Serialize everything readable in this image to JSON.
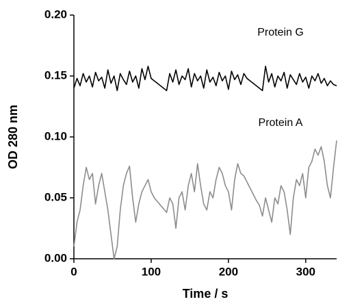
{
  "chart_data": {
    "type": "line",
    "x_label": "Time / s",
    "y_label": "OD 280 nm",
    "annotations": [
      "Protein G",
      "Protein A"
    ],
    "x": [
      0,
      4,
      8,
      12,
      16,
      20,
      24,
      28,
      32,
      36,
      40,
      44,
      48,
      52,
      56,
      60,
      64,
      68,
      72,
      76,
      80,
      84,
      88,
      92,
      96,
      100,
      104,
      108,
      112,
      116,
      120,
      124,
      128,
      132,
      136,
      140,
      144,
      148,
      152,
      156,
      160,
      164,
      168,
      172,
      176,
      180,
      184,
      188,
      192,
      196,
      200,
      204,
      208,
      212,
      216,
      220,
      224,
      228,
      232,
      236,
      240,
      244,
      248,
      252,
      256,
      260,
      264,
      268,
      272,
      276,
      280,
      284,
      288,
      292,
      296,
      300,
      304,
      308,
      312,
      316,
      320,
      324,
      328,
      332,
      336,
      340
    ],
    "series": [
      {
        "name": "Protein G",
        "color": "#000000",
        "values": [
          0.14,
          0.148,
          0.142,
          0.152,
          0.145,
          0.15,
          0.141,
          0.153,
          0.146,
          0.149,
          0.14,
          0.155,
          0.144,
          0.15,
          0.138,
          0.152,
          0.147,
          0.143,
          0.154,
          0.145,
          0.15,
          0.14,
          0.156,
          0.147,
          0.158,
          0.148,
          0.146,
          0.144,
          0.142,
          0.14,
          0.138,
          0.152,
          0.145,
          0.155,
          0.143,
          0.15,
          0.147,
          0.156,
          0.141,
          0.152,
          0.146,
          0.15,
          0.14,
          0.155,
          0.145,
          0.149,
          0.142,
          0.153,
          0.146,
          0.15,
          0.139,
          0.154,
          0.147,
          0.151,
          0.143,
          0.152,
          0.148,
          0.146,
          0.144,
          0.142,
          0.14,
          0.138,
          0.158,
          0.145,
          0.152,
          0.141,
          0.15,
          0.146,
          0.153,
          0.14,
          0.151,
          0.147,
          0.143,
          0.152,
          0.145,
          0.149,
          0.14,
          0.15,
          0.146,
          0.152,
          0.144,
          0.148,
          0.142,
          0.146,
          0.143,
          0.142
        ]
      },
      {
        "name": "Protein A",
        "color": "#8c8c8c",
        "values": [
          0.01,
          0.03,
          0.04,
          0.06,
          0.075,
          0.065,
          0.07,
          0.045,
          0.06,
          0.07,
          0.055,
          0.04,
          0.02,
          0.0,
          0.01,
          0.04,
          0.06,
          0.07,
          0.076,
          0.05,
          0.03,
          0.045,
          0.055,
          0.06,
          0.065,
          0.055,
          0.05,
          0.047,
          0.044,
          0.041,
          0.038,
          0.05,
          0.045,
          0.025,
          0.05,
          0.055,
          0.04,
          0.06,
          0.07,
          0.055,
          0.078,
          0.06,
          0.045,
          0.04,
          0.055,
          0.05,
          0.065,
          0.075,
          0.07,
          0.06,
          0.055,
          0.04,
          0.065,
          0.078,
          0.07,
          0.068,
          0.063,
          0.058,
          0.053,
          0.048,
          0.044,
          0.035,
          0.05,
          0.04,
          0.03,
          0.05,
          0.045,
          0.06,
          0.055,
          0.04,
          0.02,
          0.05,
          0.065,
          0.06,
          0.07,
          0.05,
          0.075,
          0.08,
          0.09,
          0.085,
          0.092,
          0.08,
          0.06,
          0.05,
          0.075,
          0.097
        ]
      }
    ],
    "xlim": [
      0,
      340
    ],
    "xticks": [
      0,
      100,
      200,
      300
    ],
    "ylim": [
      0,
      0.2
    ],
    "yticks": [
      {
        "value": 0,
        "label": "0.00"
      },
      0.05,
      {
        "value": 0.1,
        "label": "0.10"
      },
      0.15,
      {
        "value": 0.2,
        "label": "0.20"
      }
    ],
    "grid": false
  }
}
